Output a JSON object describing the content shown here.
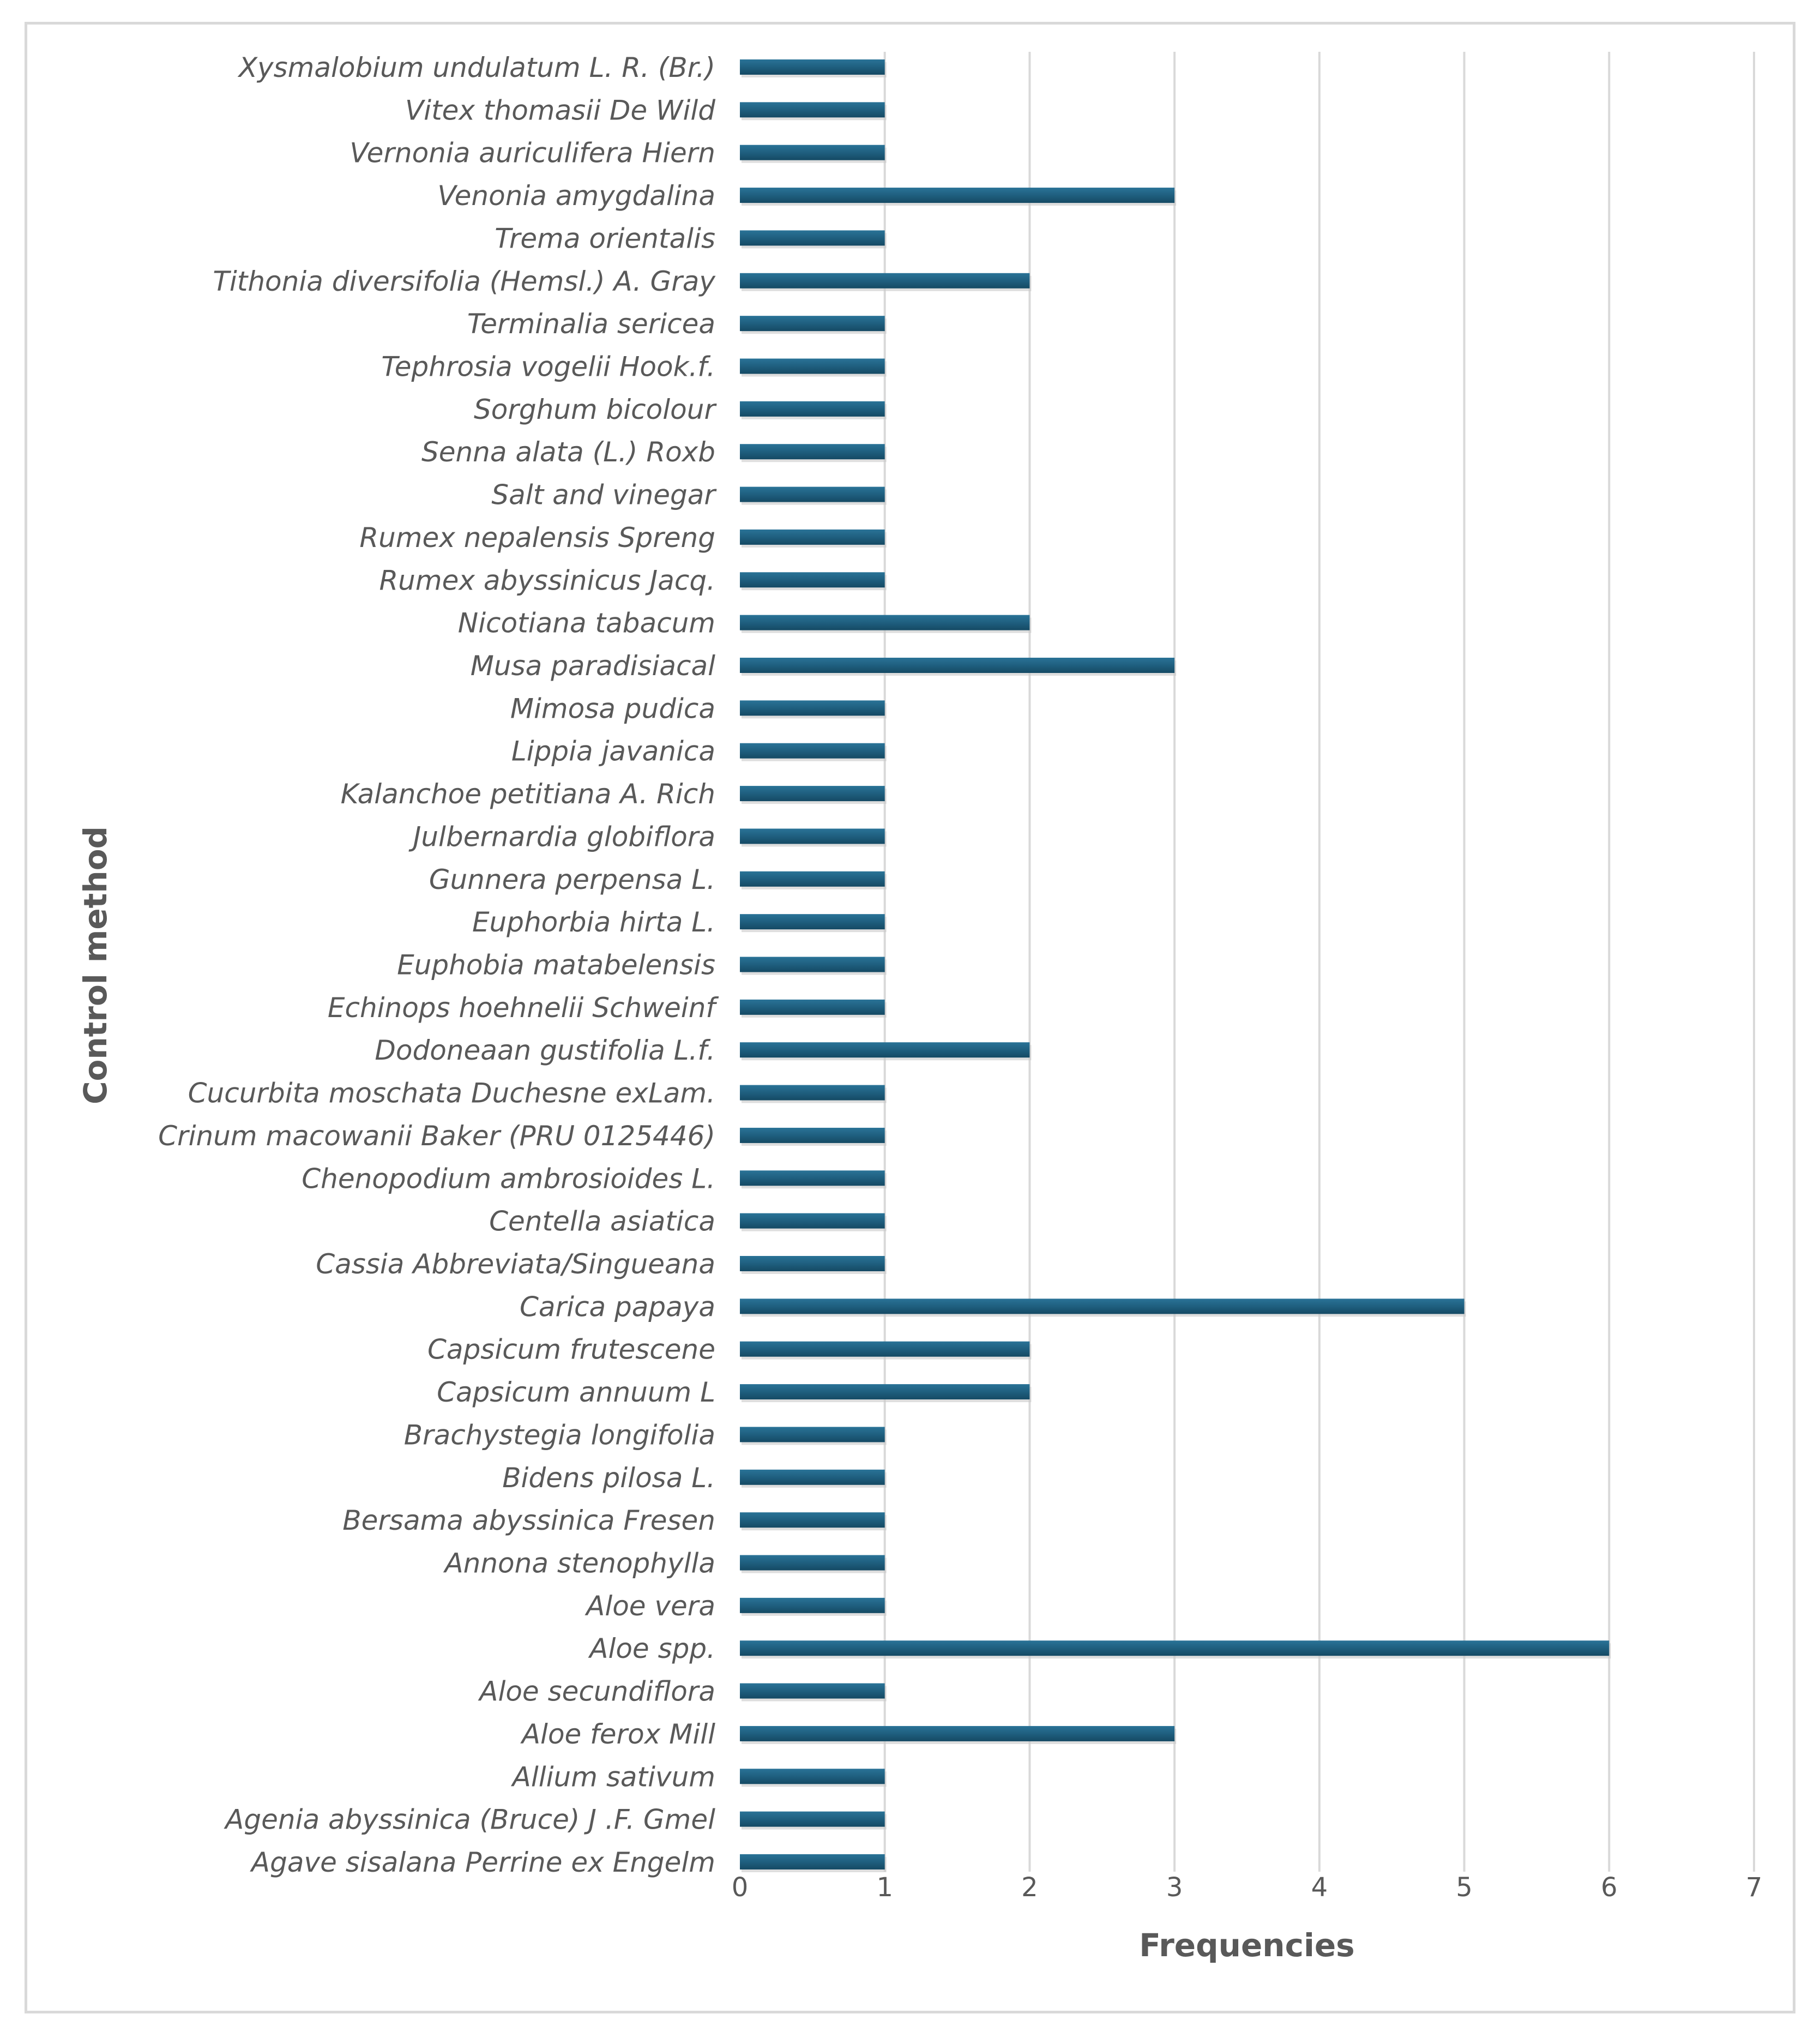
{
  "chart_data": {
    "type": "bar",
    "orientation": "horizontal",
    "title": "",
    "xlabel": "Frequencies",
    "ylabel": "Control method",
    "xlim": [
      0,
      7
    ],
    "xticks": [
      0,
      1,
      2,
      3,
      4,
      5,
      6,
      7
    ],
    "grid": "vertical",
    "bar_color": "#1f5f7f",
    "categories": [
      "Xysmalobium undulatum L. R. (Br.)",
      "Vitex thomasii De Wild",
      "Vernonia auriculifera Hiern",
      "Venonia amygdalina",
      "Trema orientalis",
      "Tithonia diversifolia (Hemsl.) A. Gray",
      "Terminalia sericea",
      "Tephrosia vogelii Hook.f.",
      "Sorghum bicolour",
      "Senna alata (L.) Roxb",
      "Salt and vinegar",
      "Rumex nepalensis Spreng",
      "Rumex abyssinicus Jacq.",
      "Nicotiana tabacum",
      "Musa paradisiacal",
      "Mimosa pudica",
      "Lippia javanica",
      "Kalanchoe petitiana A. Rich",
      "Julbernardia globiflora",
      "Gunnera perpensa L.",
      "Euphorbia hirta L.",
      "Euphobia matabelensis",
      "Echinops hoehnelii Schweinf",
      "Dodoneaan gustifolia L.f.",
      "Cucurbita moschata Duchesne exLam.",
      "Crinum macowanii Baker (PRU 0125446)",
      "Chenopodium ambrosioides L.",
      "Centella asiatica",
      "Cassia Abbreviata/Singueana",
      "Carica papaya",
      "Capsicum frutescene",
      "Capsicum annuum L",
      "Brachystegia longifolia",
      "Bidens pilosa L.",
      "Bersama abyssinica Fresen",
      "Annona stenophylla",
      "Aloe vera",
      "Aloe spp.",
      "Aloe secundiflora",
      "Aloe ferox Mill",
      "Allium sativum",
      "Agenia abyssinica (Bruce) J .F. Gmel",
      "Agave sisalana Perrine ex Engelm"
    ],
    "values": [
      1,
      1,
      1,
      3,
      1,
      2,
      1,
      1,
      1,
      1,
      1,
      1,
      1,
      2,
      3,
      1,
      1,
      1,
      1,
      1,
      1,
      1,
      1,
      2,
      1,
      1,
      1,
      1,
      1,
      5,
      2,
      2,
      1,
      1,
      1,
      1,
      1,
      6,
      1,
      3,
      1,
      1,
      1
    ]
  }
}
